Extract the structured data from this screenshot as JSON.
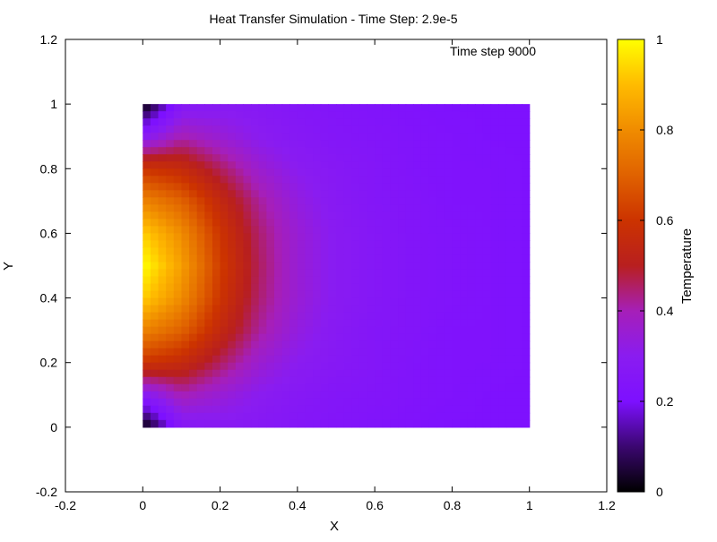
{
  "chart_data": {
    "type": "heatmap",
    "title": "Heat Transfer Simulation - Time Step: 2.9e-5",
    "annotation": "Time step 9000",
    "xlabel": "X",
    "ylabel": "Y",
    "xlim": [
      -0.2,
      1.2
    ],
    "ylim": [
      -0.2,
      1.2
    ],
    "xticks": [
      -0.2,
      0,
      0.2,
      0.4,
      0.6,
      0.8,
      1,
      1.2
    ],
    "yticks": [
      -0.2,
      0,
      0.2,
      0.4,
      0.6,
      0.8,
      1,
      1.2
    ],
    "x_tick_labels": [
      "-0.2",
      "0",
      "0.2",
      "0.4",
      "0.6",
      "0.8",
      "1",
      "1.2"
    ],
    "y_tick_labels": [
      "-0.2",
      "0",
      "0.2",
      "0.4",
      "0.6",
      "0.8",
      "1",
      "1.2"
    ],
    "domain": {
      "x": [
        0,
        1
      ],
      "y": [
        0,
        1
      ]
    },
    "colorbar": {
      "label": "Temperature",
      "range": [
        0,
        1
      ],
      "ticks": [
        0,
        0.2,
        0.4,
        0.6,
        0.8,
        1
      ],
      "tick_labels": [
        "0",
        "0.2",
        "0.4",
        "0.6",
        "0.8",
        "1"
      ],
      "stops": [
        {
          "value": 0.0,
          "color": "#000000"
        },
        {
          "value": 0.1,
          "color": "#3b0770"
        },
        {
          "value": 0.2,
          "color": "#7d10ff"
        },
        {
          "value": 0.3,
          "color": "#8a1cf0"
        },
        {
          "value": 0.4,
          "color": "#a61fb8"
        },
        {
          "value": 0.5,
          "color": "#b81f1f"
        },
        {
          "value": 0.6,
          "color": "#cc3300"
        },
        {
          "value": 0.7,
          "color": "#e06200"
        },
        {
          "value": 0.8,
          "color": "#f08c00"
        },
        {
          "value": 0.9,
          "color": "#ffbb00"
        },
        {
          "value": 1.0,
          "color": "#ffff00"
        }
      ]
    },
    "samples": {
      "x": [
        0,
        0.1,
        0.2,
        0.3,
        0.4,
        0.5,
        0.6,
        0.7,
        0.8,
        0.9,
        1
      ],
      "y": [
        0,
        0.1,
        0.2,
        0.3,
        0.4,
        0.5,
        0.6,
        0.7,
        0.8,
        0.9,
        1
      ],
      "temperature": [
        [
          0.0,
          0.26,
          0.28,
          0.27,
          0.25,
          0.24,
          0.23,
          0.22,
          0.21,
          0.21,
          0.21
        ],
        [
          0.28,
          0.4,
          0.35,
          0.3,
          0.27,
          0.25,
          0.24,
          0.23,
          0.22,
          0.21,
          0.21
        ],
        [
          0.6,
          0.56,
          0.46,
          0.36,
          0.3,
          0.27,
          0.25,
          0.23,
          0.22,
          0.22,
          0.21
        ],
        [
          0.78,
          0.7,
          0.55,
          0.42,
          0.33,
          0.28,
          0.25,
          0.24,
          0.22,
          0.22,
          0.21
        ],
        [
          0.93,
          0.8,
          0.6,
          0.45,
          0.35,
          0.29,
          0.26,
          0.24,
          0.23,
          0.22,
          0.21
        ],
        [
          1.0,
          0.84,
          0.62,
          0.46,
          0.35,
          0.29,
          0.26,
          0.24,
          0.23,
          0.22,
          0.21
        ],
        [
          0.93,
          0.8,
          0.6,
          0.45,
          0.35,
          0.29,
          0.26,
          0.24,
          0.23,
          0.22,
          0.21
        ],
        [
          0.78,
          0.7,
          0.55,
          0.42,
          0.33,
          0.28,
          0.25,
          0.24,
          0.22,
          0.22,
          0.21
        ],
        [
          0.6,
          0.56,
          0.46,
          0.36,
          0.3,
          0.27,
          0.25,
          0.23,
          0.22,
          0.22,
          0.21
        ],
        [
          0.28,
          0.4,
          0.35,
          0.3,
          0.27,
          0.25,
          0.24,
          0.23,
          0.22,
          0.21,
          0.21
        ],
        [
          0.0,
          0.26,
          0.28,
          0.27,
          0.25,
          0.24,
          0.23,
          0.22,
          0.21,
          0.21,
          0.21
        ]
      ]
    },
    "grid": false,
    "legend": "none"
  }
}
